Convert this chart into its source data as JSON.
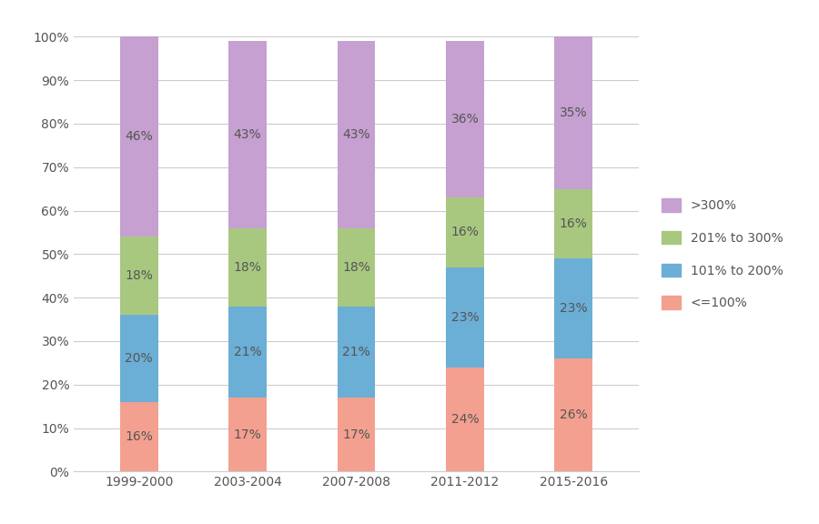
{
  "categories": [
    "1999-2000",
    "2003-2004",
    "2007-2008",
    "2011-2012",
    "2015-2016"
  ],
  "series": {
    "<=100%": [
      16,
      17,
      17,
      24,
      26
    ],
    "101% to 200%": [
      20,
      21,
      21,
      23,
      23
    ],
    "201% to 300%": [
      18,
      18,
      18,
      16,
      16
    ],
    ">300%": [
      46,
      43,
      43,
      36,
      35
    ]
  },
  "colors": {
    "<=100%": "#f4a090",
    "101% to 200%": "#6baed6",
    "201% to 300%": "#a8c880",
    ">300%": "#c5a0d0"
  },
  "legend_order": [
    "<=100%",
    "101% to 200%",
    "201% to 300%",
    ">300%"
  ],
  "yticks": [
    0,
    10,
    20,
    30,
    40,
    50,
    60,
    70,
    80,
    90,
    100
  ],
  "ytick_labels": [
    "0%",
    "10%",
    "20%",
    "30%",
    "40%",
    "50%",
    "60%",
    "70%",
    "80%",
    "90%",
    "100%"
  ],
  "bar_width": 0.35,
  "background_color": "#ffffff",
  "text_color": "#555555",
  "grid_color": "#cccccc",
  "label_fontsize": 10,
  "tick_fontsize": 10,
  "legend_fontsize": 10
}
